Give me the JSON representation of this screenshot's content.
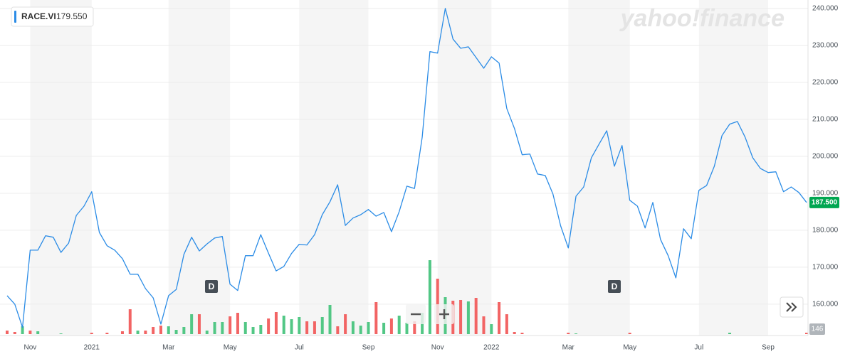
{
  "chart_data": {
    "type": "line",
    "logo": "yahoo!finance",
    "legend_name": "RACE.VI",
    "legend_value": {
      "value": 179.55,
      "label": "179.550"
    },
    "last_price": {
      "value": 187.5,
      "label": "187.500"
    },
    "volume_axis_label": "146",
    "dividend_markers": [
      "D",
      "D"
    ],
    "categories": [
      null,
      null,
      null,
      "Nov",
      null,
      null,
      null,
      null,
      null,
      null,
      null,
      "2021",
      null,
      null,
      null,
      null,
      null,
      null,
      null,
      null,
      null,
      "Mar",
      null,
      null,
      null,
      null,
      null,
      null,
      null,
      "May",
      null,
      null,
      null,
      null,
      null,
      null,
      null,
      null,
      "Jul",
      null,
      null,
      null,
      null,
      null,
      null,
      null,
      null,
      "Sep",
      null,
      null,
      null,
      null,
      null,
      null,
      null,
      null,
      "Nov",
      null,
      null,
      null,
      null,
      null,
      null,
      "2022",
      null,
      null,
      null,
      null,
      null,
      null,
      null,
      null,
      null,
      "Mar",
      null,
      null,
      null,
      null,
      null,
      null,
      null,
      "May",
      null,
      null,
      null,
      null,
      null,
      null,
      null,
      null,
      "Jul",
      null,
      null,
      null,
      null,
      null,
      null,
      null,
      null,
      "Sep",
      null,
      null,
      null,
      null,
      null
    ],
    "series": [
      {
        "name": "RACE.VI",
        "color": "#2b8ce6",
        "values": [
          162.3,
          160.0,
          153.7,
          174.6,
          174.6,
          178.5,
          178.1,
          174.0,
          176.5,
          184.0,
          186.5,
          190.4,
          179.4,
          175.8,
          174.6,
          172.3,
          168.1,
          168.1,
          164.2,
          161.7,
          154.6,
          162.3,
          164.0,
          173.5,
          178.1,
          174.4,
          176.3,
          177.9,
          178.3,
          165.4,
          163.7,
          173.1,
          173.1,
          178.8,
          173.8,
          169.0,
          170.2,
          173.7,
          176.2,
          176.0,
          178.8,
          184.2,
          187.7,
          192.3,
          181.3,
          183.3,
          184.2,
          185.6,
          183.8,
          184.8,
          179.6,
          185.0,
          191.9,
          191.3,
          205.2,
          228.3,
          227.9,
          240.0,
          231.7,
          229.2,
          229.6,
          226.7,
          223.8,
          226.9,
          225.2,
          212.9,
          207.5,
          200.4,
          200.6,
          195.2,
          194.8,
          189.8,
          181.2,
          175.2,
          189.2,
          191.7,
          199.6,
          203.3,
          206.9,
          197.3,
          202.9,
          188.1,
          186.5,
          180.6,
          187.5,
          177.5,
          173.1,
          167.1,
          180.4,
          177.7,
          190.8,
          192.1,
          197.3,
          205.6,
          208.7,
          209.4,
          205.2,
          199.6,
          196.7,
          195.6,
          195.8,
          190.4,
          191.7,
          190.2,
          187.5
        ]
      }
    ],
    "volume_up_color": "#52c785",
    "volume_down_color": "#f26464",
    "volume_up": [
      null,
      null,
      11,
      null,
      4,
      null,
      null,
      1,
      null,
      null,
      null,
      null,
      null,
      null,
      null,
      null,
      null,
      5,
      null,
      null,
      null,
      11,
      6,
      10,
      28,
      null,
      5,
      17,
      17,
      null,
      null,
      17,
      10,
      13,
      null,
      null,
      26,
      21,
      24,
      null,
      null,
      24,
      41,
      null,
      null,
      18,
      12,
      17,
      null,
      16,
      null,
      26,
      16,
      null,
      30,
      104,
      null,
      52,
      null,
      null,
      46,
      null,
      null,
      14,
      null,
      null,
      null,
      null,
      null,
      null,
      null,
      null,
      null,
      null,
      1,
      null,
      null,
      null,
      null,
      null,
      null,
      null,
      null,
      null,
      null,
      null,
      null,
      null,
      null,
      null,
      null,
      null,
      null,
      null,
      2,
      null,
      null,
      null,
      null,
      null,
      null,
      null,
      null,
      null,
      null
    ],
    "volume_down": [
      5,
      3,
      null,
      5,
      null,
      null,
      null,
      null,
      null,
      null,
      null,
      2,
      null,
      2,
      null,
      4,
      35,
      null,
      5,
      10,
      12,
      null,
      null,
      null,
      null,
      28,
      null,
      null,
      null,
      25,
      30,
      null,
      null,
      null,
      22,
      31,
      null,
      null,
      null,
      18,
      18,
      null,
      null,
      11,
      28,
      null,
      null,
      null,
      45,
      null,
      22,
      null,
      null,
      18,
      null,
      null,
      78,
      null,
      47,
      48,
      null,
      51,
      25,
      null,
      45,
      28,
      3,
      2,
      null,
      null,
      null,
      null,
      null,
      2,
      null,
      null,
      null,
      null,
      null,
      null,
      null,
      2,
      null,
      null,
      null,
      null,
      null,
      null,
      null,
      null,
      null,
      null,
      null,
      null,
      null,
      null,
      null,
      null,
      null,
      null,
      null,
      null,
      null,
      null,
      2
    ],
    "vlim": [
      0,
      110
    ],
    "ylim": [
      151.9,
      241.3
    ],
    "yticks": [
      {
        "value": 160,
        "label": "160.000"
      },
      {
        "value": 170,
        "label": "170.000"
      },
      {
        "value": 180,
        "label": "180.000"
      },
      {
        "value": 190,
        "label": "190.000"
      },
      {
        "value": 200,
        "label": "200.000"
      },
      {
        "value": 210,
        "label": "210.000"
      },
      {
        "value": 220,
        "label": "220.000"
      },
      {
        "value": 230,
        "label": "230.000"
      },
      {
        "value": 240,
        "label": "240.000"
      }
    ],
    "grid": true
  }
}
